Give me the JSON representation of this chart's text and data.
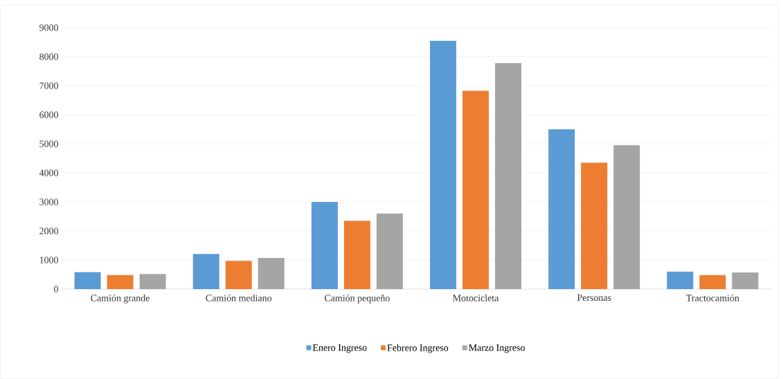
{
  "chart_data": {
    "type": "bar",
    "categories": [
      "Camión grande",
      "Camión mediano",
      "Camión pequeño",
      "Motocicleta",
      "Personas",
      "Tractocamión"
    ],
    "series": [
      {
        "name": "Enero Ingreso",
        "color": "#5b9bd5",
        "values": [
          580,
          1210,
          3000,
          8550,
          5500,
          600
        ]
      },
      {
        "name": "Febrero Ingreso",
        "color": "#ed7d31",
        "values": [
          480,
          970,
          2350,
          6830,
          4350,
          480
        ]
      },
      {
        "name": "Marzo Ingreso",
        "color": "#a5a5a5",
        "values": [
          520,
          1070,
          2600,
          7780,
          4950,
          570
        ]
      }
    ],
    "ylim": [
      0,
      9000
    ],
    "yticks": [
      0,
      1000,
      2000,
      3000,
      4000,
      5000,
      6000,
      7000,
      8000,
      9000
    ],
    "grid": "y",
    "legend": "bottom"
  }
}
